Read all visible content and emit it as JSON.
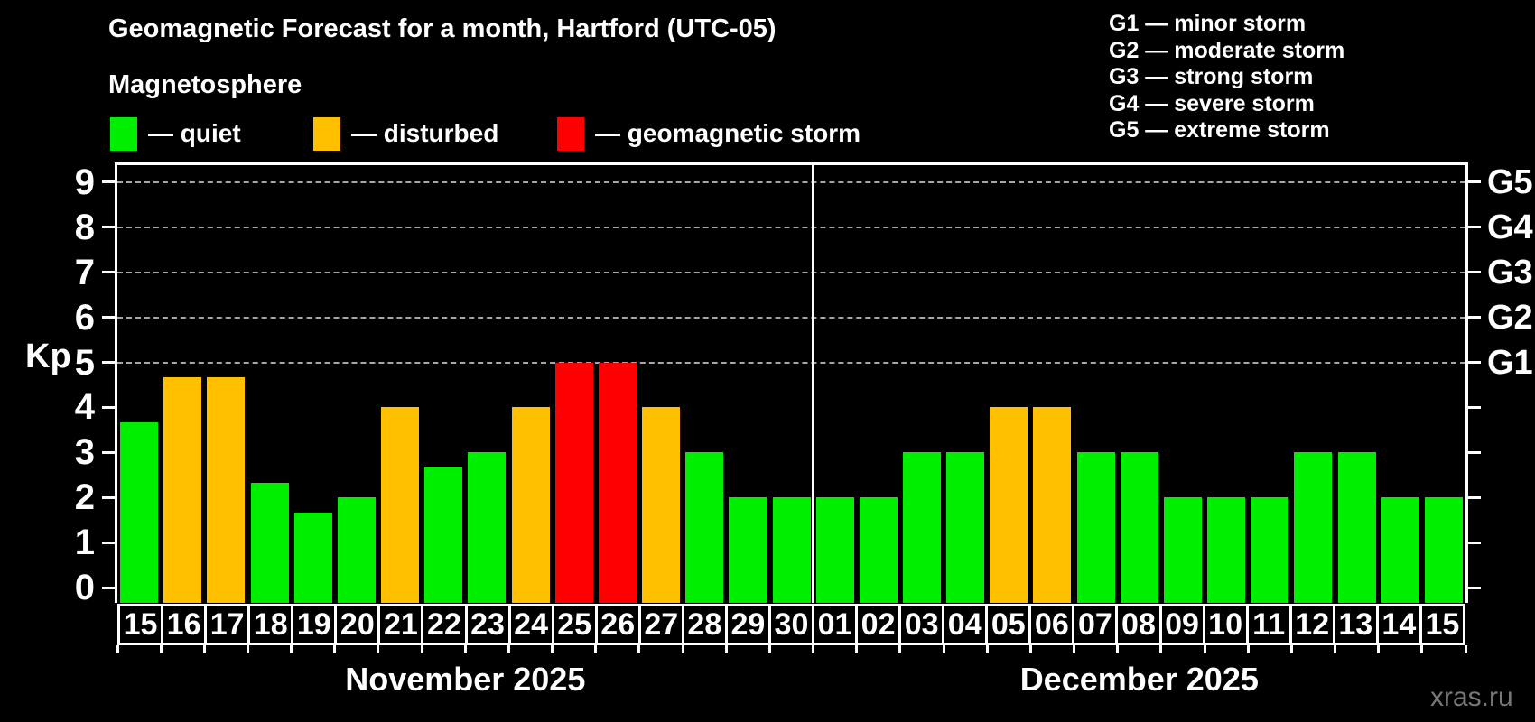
{
  "header": {
    "title": "Geomagnetic Forecast for a month, Hartford (UTC-05)",
    "subtitle": "Magnetosphere",
    "legend": [
      {
        "key": "quiet",
        "label": "— quiet",
        "color": "#00ee00"
      },
      {
        "key": "disturbed",
        "label": "— disturbed",
        "color": "#ffc000"
      },
      {
        "key": "storm",
        "label": "— geomagnetic storm",
        "color": "#ff0000"
      }
    ],
    "g_scale_legend": [
      "G1 — minor storm",
      "G2 — moderate storm",
      "G3 — strong storm",
      "G4 — severe storm",
      "G5 — extreme storm"
    ]
  },
  "watermark": "xras.ru",
  "chart_data": {
    "type": "bar",
    "title": "Geomagnetic Forecast for a month, Hartford (UTC-05)",
    "ylabel": "Kp",
    "ylim": [
      -0.35,
      9.38
    ],
    "y_ticks": [
      0,
      1,
      2,
      3,
      4,
      5,
      6,
      7,
      8,
      9
    ],
    "gridlines_at": [
      5,
      6,
      7,
      8,
      9
    ],
    "grid_style": "dashed horizontal lines at G-storm levels only",
    "right_axis_labels": [
      {
        "kp": 5,
        "label": "G1"
      },
      {
        "kp": 6,
        "label": "G2"
      },
      {
        "kp": 7,
        "label": "G3"
      },
      {
        "kp": 8,
        "label": "G4"
      },
      {
        "kp": 9,
        "label": "G5"
      }
    ],
    "colors": {
      "quiet": "#00ee00",
      "disturbed": "#ffc000",
      "storm": "#ff0000"
    },
    "months": [
      {
        "label": "November 2025",
        "days": [
          {
            "day": "15",
            "kp": 3.67,
            "status": "quiet"
          },
          {
            "day": "16",
            "kp": 4.67,
            "status": "disturbed"
          },
          {
            "day": "17",
            "kp": 4.67,
            "status": "disturbed"
          },
          {
            "day": "18",
            "kp": 2.33,
            "status": "quiet"
          },
          {
            "day": "19",
            "kp": 1.67,
            "status": "quiet"
          },
          {
            "day": "20",
            "kp": 2.0,
            "status": "quiet"
          },
          {
            "day": "21",
            "kp": 4.0,
            "status": "disturbed"
          },
          {
            "day": "22",
            "kp": 2.67,
            "status": "quiet"
          },
          {
            "day": "23",
            "kp": 3.0,
            "status": "quiet"
          },
          {
            "day": "24",
            "kp": 4.0,
            "status": "disturbed"
          },
          {
            "day": "25",
            "kp": 5.0,
            "status": "storm"
          },
          {
            "day": "26",
            "kp": 5.0,
            "status": "storm"
          },
          {
            "day": "27",
            "kp": 4.0,
            "status": "disturbed"
          },
          {
            "day": "28",
            "kp": 3.0,
            "status": "quiet"
          },
          {
            "day": "29",
            "kp": 2.0,
            "status": "quiet"
          },
          {
            "day": "30",
            "kp": 2.0,
            "status": "quiet"
          }
        ]
      },
      {
        "label": "December 2025",
        "days": [
          {
            "day": "01",
            "kp": 2.0,
            "status": "quiet"
          },
          {
            "day": "02",
            "kp": 2.0,
            "status": "quiet"
          },
          {
            "day": "03",
            "kp": 3.0,
            "status": "quiet"
          },
          {
            "day": "04",
            "kp": 3.0,
            "status": "quiet"
          },
          {
            "day": "05",
            "kp": 4.0,
            "status": "disturbed"
          },
          {
            "day": "06",
            "kp": 4.0,
            "status": "disturbed"
          },
          {
            "day": "07",
            "kp": 3.0,
            "status": "quiet"
          },
          {
            "day": "08",
            "kp": 3.0,
            "status": "quiet"
          },
          {
            "day": "09",
            "kp": 2.0,
            "status": "quiet"
          },
          {
            "day": "10",
            "kp": 2.0,
            "status": "quiet"
          },
          {
            "day": "11",
            "kp": 2.0,
            "status": "quiet"
          },
          {
            "day": "12",
            "kp": 3.0,
            "status": "quiet"
          },
          {
            "day": "13",
            "kp": 3.0,
            "status": "quiet"
          },
          {
            "day": "14",
            "kp": 2.0,
            "status": "quiet"
          },
          {
            "day": "15",
            "kp": 2.0,
            "status": "quiet"
          }
        ]
      }
    ]
  }
}
